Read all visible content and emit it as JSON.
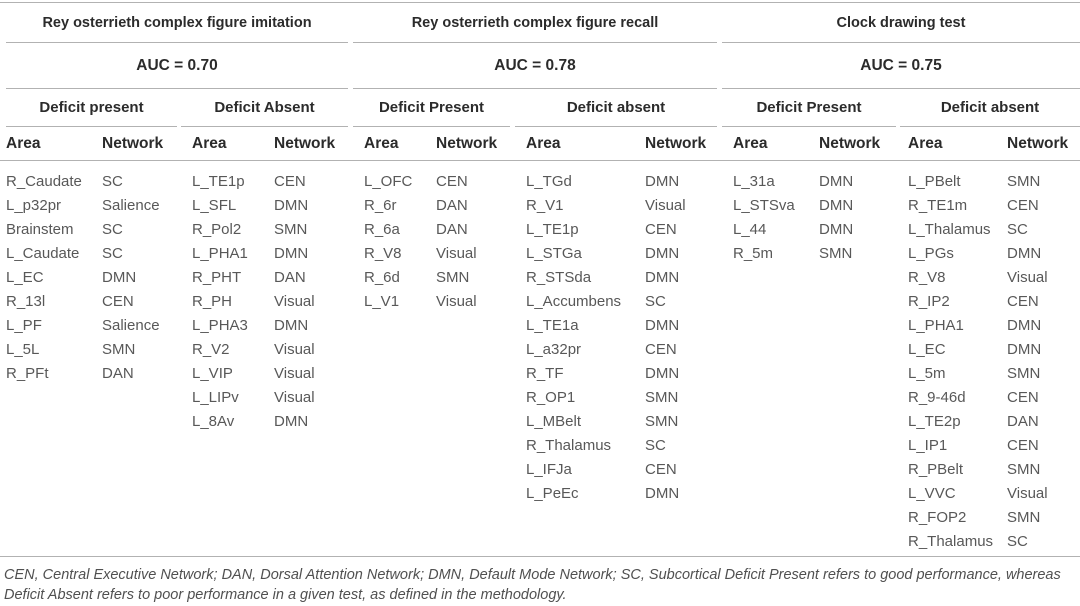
{
  "table": {
    "sections": [
      {
        "title": "Rey osterrieth complex figure imitation",
        "auc_label": "AUC = 0.70",
        "subsections": [
          {
            "label": "Deficit present",
            "columns": [
              "Area",
              "Network"
            ],
            "rows": [
              [
                "R_Caudate",
                "SC"
              ],
              [
                "L_p32pr",
                "Salience"
              ],
              [
                "Brainstem",
                "SC"
              ],
              [
                "L_Caudate",
                "SC"
              ],
              [
                "L_EC",
                "DMN"
              ],
              [
                "R_13l",
                "CEN"
              ],
              [
                "L_PF",
                "Salience"
              ],
              [
                "L_5L",
                "SMN"
              ],
              [
                "R_PFt",
                "DAN"
              ]
            ]
          },
          {
            "label": "Deficit Absent",
            "columns": [
              "Area",
              "Network"
            ],
            "rows": [
              [
                "L_TE1p",
                "CEN"
              ],
              [
                "L_SFL",
                "DMN"
              ],
              [
                "R_Pol2",
                "SMN"
              ],
              [
                "L_PHA1",
                "DMN"
              ],
              [
                "R_PHT",
                "DAN"
              ],
              [
                "R_PH",
                "Visual"
              ],
              [
                "L_PHA3",
                "DMN"
              ],
              [
                "R_V2",
                "Visual"
              ],
              [
                "L_VIP",
                "Visual"
              ],
              [
                "L_LIPv",
                "Visual"
              ],
              [
                "L_8Av",
                "DMN"
              ]
            ]
          }
        ]
      },
      {
        "title": "Rey osterrieth complex figure recall",
        "auc_label": "AUC = 0.78",
        "subsections": [
          {
            "label": "Deficit Present",
            "columns": [
              "Area",
              "Network"
            ],
            "rows": [
              [
                "L_OFC",
                "CEN"
              ],
              [
                "R_6r",
                "DAN"
              ],
              [
                "R_6a",
                "DAN"
              ],
              [
                "R_V8",
                "Visual"
              ],
              [
                "R_6d",
                "SMN"
              ],
              [
                "L_V1",
                "Visual"
              ]
            ]
          },
          {
            "label": "Deficit absent",
            "columns": [
              "Area",
              "Network"
            ],
            "rows": [
              [
                "L_TGd",
                "DMN"
              ],
              [
                "R_V1",
                "Visual"
              ],
              [
                "L_TE1p",
                "CEN"
              ],
              [
                "L_STGa",
                "DMN"
              ],
              [
                "R_STSda",
                "DMN"
              ],
              [
                "L_Accumbens",
                "SC"
              ],
              [
                "L_TE1a",
                "DMN"
              ],
              [
                "L_a32pr",
                "CEN"
              ],
              [
                "R_TF",
                "DMN"
              ],
              [
                "R_OP1",
                "SMN"
              ],
              [
                "L_MBelt",
                "SMN"
              ],
              [
                "R_Thalamus",
                "SC"
              ],
              [
                "L_IFJa",
                "CEN"
              ],
              [
                "L_PeEc",
                "DMN"
              ]
            ]
          }
        ]
      },
      {
        "title": "Clock drawing test",
        "auc_label": "AUC = 0.75",
        "subsections": [
          {
            "label": "Deficit Present",
            "columns": [
              "Area",
              "Network"
            ],
            "rows": [
              [
                "L_31a",
                "DMN"
              ],
              [
                "L_STSva",
                "DMN"
              ],
              [
                "L_44",
                "DMN"
              ],
              [
                "R_5m",
                "SMN"
              ]
            ]
          },
          {
            "label": "Deficit absent",
            "columns": [
              "Area",
              "Network"
            ],
            "rows": [
              [
                "L_PBelt",
                "SMN"
              ],
              [
                "R_TE1m",
                "CEN"
              ],
              [
                "L_Thalamus",
                "SC"
              ],
              [
                "L_PGs",
                "DMN"
              ],
              [
                "R_V8",
                "Visual"
              ],
              [
                "R_IP2",
                "CEN"
              ],
              [
                "L_PHA1",
                "DMN"
              ],
              [
                "L_EC",
                "DMN"
              ],
              [
                "L_5m",
                "SMN"
              ],
              [
                "R_9-46d",
                "CEN"
              ],
              [
                "L_TE2p",
                "DAN"
              ],
              [
                "L_IP1",
                "CEN"
              ],
              [
                "R_PBelt",
                "SMN"
              ],
              [
                "L_VVC",
                "Visual"
              ],
              [
                "R_FOP2",
                "SMN"
              ],
              [
                "R_Thalamus",
                "SC"
              ]
            ]
          }
        ]
      }
    ],
    "footnote": [
      "CEN, Central Executive Network; DAN, Dorsal Attention Network; DMN, Default Mode Network; SC, Subcortical Deficit Present refers to good performance, whereas",
      "Deficit Absent refers to poor performance in a given test, as defined in the methodology."
    ],
    "colors": {
      "rule": "#b2b2b2",
      "header_text": "#2b2b2b",
      "body_text": "#585858"
    }
  }
}
